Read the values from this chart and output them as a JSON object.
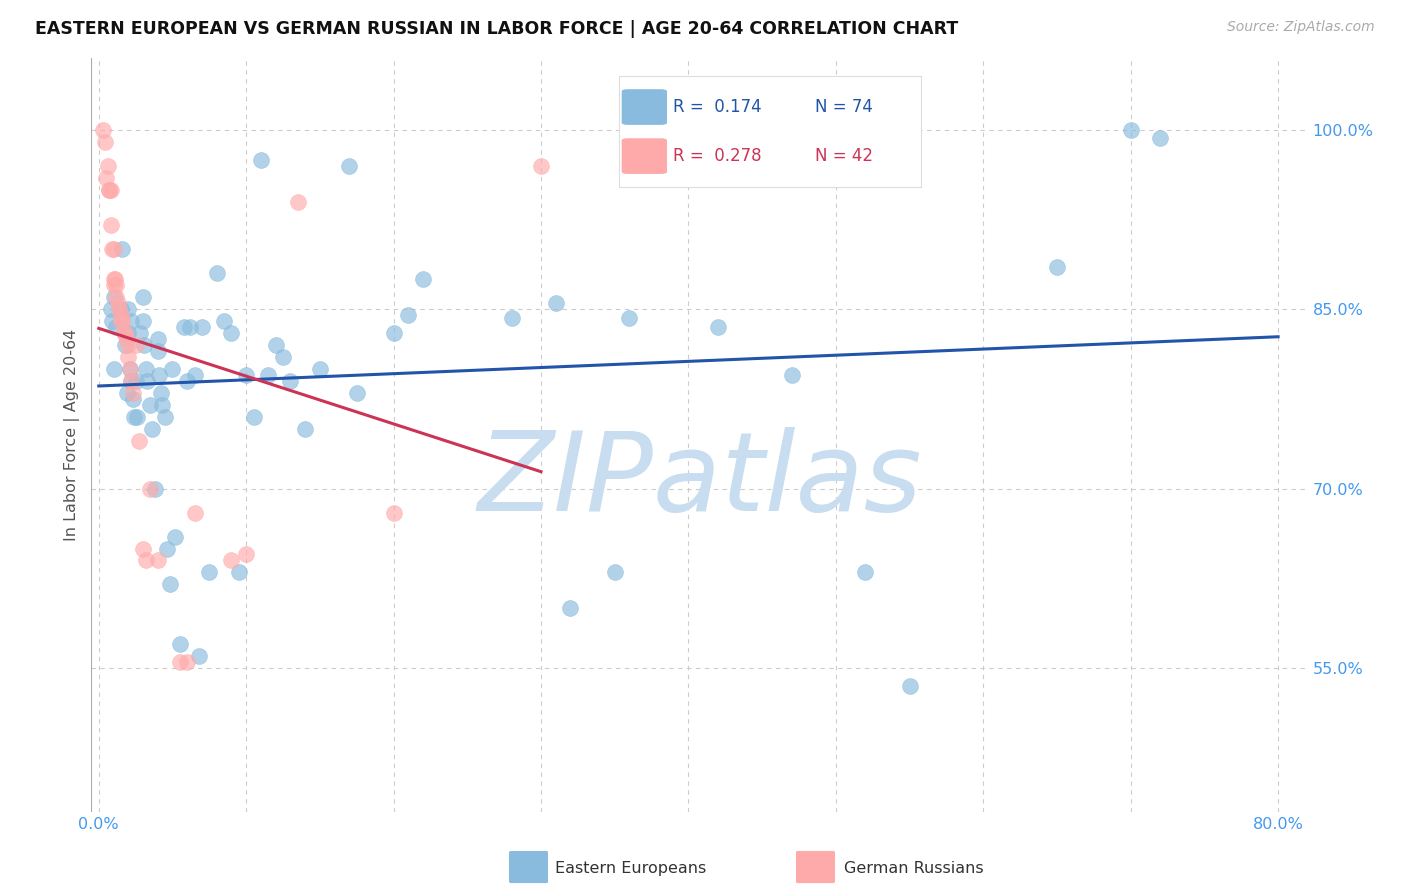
{
  "title": "EASTERN EUROPEAN VS GERMAN RUSSIAN IN LABOR FORCE | AGE 20-64 CORRELATION CHART",
  "source": "Source: ZipAtlas.com",
  "ylabel": "In Labor Force | Age 20-64",
  "xlim": [
    -0.005,
    0.82
  ],
  "ylim": [
    0.43,
    1.06
  ],
  "xticks": [
    0.0,
    0.1,
    0.2,
    0.3,
    0.4,
    0.5,
    0.6,
    0.7,
    0.8
  ],
  "xticklabels": [
    "0.0%",
    "",
    "",
    "",
    "",
    "",
    "",
    "",
    "80.0%"
  ],
  "yticks_right": [
    0.55,
    0.7,
    0.85,
    1.0
  ],
  "yticklabels_right": [
    "55.0%",
    "70.0%",
    "85.0%",
    "100.0%"
  ],
  "blue_color": "#88BBDD",
  "pink_color": "#FFAAAA",
  "line_blue": "#2255AA",
  "line_pink": "#CC3355",
  "watermark": "ZIPatlas",
  "watermark_color": "#C8DDEF",
  "blue_x": [
    0.008,
    0.009,
    0.01,
    0.01,
    0.012,
    0.015,
    0.016,
    0.018,
    0.019,
    0.02,
    0.02,
    0.021,
    0.022,
    0.022,
    0.023,
    0.024,
    0.025,
    0.026,
    0.028,
    0.03,
    0.03,
    0.031,
    0.032,
    0.033,
    0.035,
    0.036,
    0.038,
    0.04,
    0.04,
    0.041,
    0.042,
    0.043,
    0.045,
    0.046,
    0.048,
    0.05,
    0.052,
    0.055,
    0.058,
    0.06,
    0.062,
    0.065,
    0.068,
    0.07,
    0.075,
    0.08,
    0.085,
    0.09,
    0.095,
    0.1,
    0.105,
    0.11,
    0.115,
    0.12,
    0.125,
    0.13,
    0.14,
    0.15,
    0.17,
    0.175,
    0.2,
    0.21,
    0.22,
    0.28,
    0.31,
    0.32,
    0.35,
    0.36,
    0.42,
    0.47,
    0.52,
    0.55,
    0.65,
    0.7,
    0.72
  ],
  "blue_y": [
    0.85,
    0.84,
    0.86,
    0.8,
    0.835,
    0.85,
    0.9,
    0.82,
    0.78,
    0.85,
    0.83,
    0.8,
    0.84,
    0.79,
    0.775,
    0.76,
    0.79,
    0.76,
    0.83,
    0.86,
    0.84,
    0.82,
    0.8,
    0.79,
    0.77,
    0.75,
    0.7,
    0.825,
    0.815,
    0.795,
    0.78,
    0.77,
    0.76,
    0.65,
    0.62,
    0.8,
    0.66,
    0.57,
    0.835,
    0.79,
    0.835,
    0.795,
    0.56,
    0.835,
    0.63,
    0.88,
    0.84,
    0.83,
    0.63,
    0.795,
    0.76,
    0.975,
    0.795,
    0.82,
    0.81,
    0.79,
    0.75,
    0.8,
    0.97,
    0.78,
    0.83,
    0.845,
    0.875,
    0.843,
    0.855,
    0.6,
    0.63,
    0.843,
    0.835,
    0.795,
    0.63,
    0.535,
    0.885,
    1.0,
    0.993
  ],
  "pink_x": [
    0.003,
    0.004,
    0.005,
    0.006,
    0.007,
    0.007,
    0.008,
    0.008,
    0.009,
    0.01,
    0.01,
    0.01,
    0.011,
    0.012,
    0.012,
    0.013,
    0.014,
    0.015,
    0.015,
    0.016,
    0.017,
    0.018,
    0.019,
    0.02,
    0.02,
    0.021,
    0.022,
    0.023,
    0.025,
    0.027,
    0.03,
    0.032,
    0.035,
    0.04,
    0.055,
    0.06,
    0.065,
    0.09,
    0.1,
    0.135,
    0.2,
    0.3
  ],
  "pink_y": [
    1.0,
    0.99,
    0.96,
    0.97,
    0.95,
    0.95,
    0.95,
    0.92,
    0.9,
    0.9,
    0.875,
    0.87,
    0.875,
    0.87,
    0.86,
    0.855,
    0.85,
    0.845,
    0.84,
    0.84,
    0.83,
    0.83,
    0.825,
    0.82,
    0.81,
    0.8,
    0.79,
    0.78,
    0.82,
    0.74,
    0.65,
    0.64,
    0.7,
    0.64,
    0.555,
    0.555,
    0.68,
    0.64,
    0.645,
    0.94,
    0.68,
    0.97
  ],
  "bg_color": "#FFFFFF",
  "grid_color": "#CCCCCC",
  "tick_color": "#4499EE"
}
